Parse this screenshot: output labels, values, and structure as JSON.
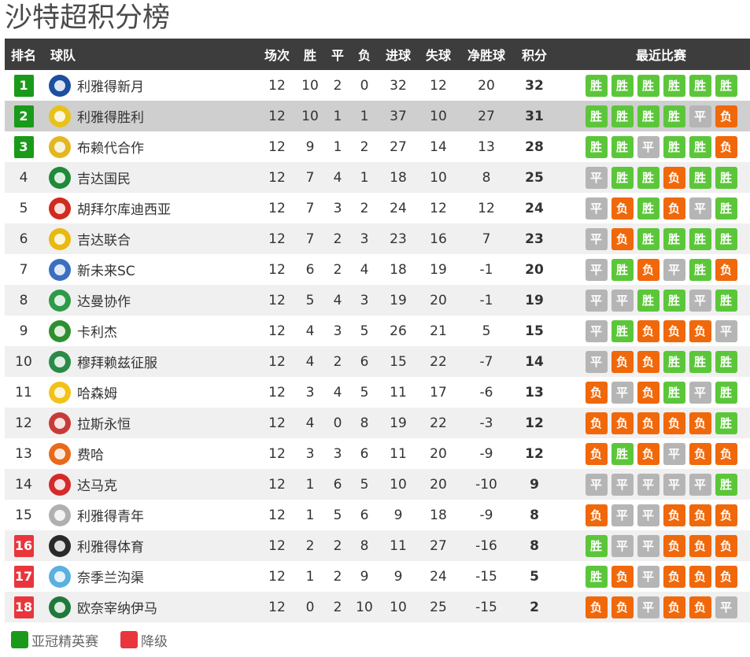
{
  "title": "沙特超积分榜",
  "headers": {
    "rank": "排名",
    "team": "球队",
    "played": "场次",
    "won": "胜",
    "drawn": "平",
    "lost": "负",
    "gf": "进球",
    "ga": "失球",
    "gd": "净胜球",
    "pts": "积分",
    "form": "最近比赛"
  },
  "colors": {
    "qualify": "#1a9a1a",
    "relegate": "#e8363c",
    "win": "#5cc63a",
    "draw": "#b5b5b5",
    "loss": "#f0680a",
    "header_bg": "#3d3d3d"
  },
  "form_labels": {
    "W": "胜",
    "D": "平",
    "L": "负"
  },
  "rows": [
    {
      "rank": "1",
      "zone": "qualify",
      "team": "利雅得新月",
      "logo": "al-hilal-crest",
      "logo_color": "#1d4fa0",
      "played": "12",
      "won": "10",
      "drawn": "2",
      "lost": "0",
      "gf": "32",
      "ga": "12",
      "gd": "20",
      "pts": "32",
      "form": [
        "W",
        "W",
        "W",
        "W",
        "W",
        "W"
      ]
    },
    {
      "rank": "2",
      "zone": "qualify",
      "team": "利雅得胜利",
      "logo": "al-nassr-crest",
      "logo_color": "#e8c21a",
      "played": "12",
      "won": "10",
      "drawn": "1",
      "lost": "1",
      "gf": "37",
      "ga": "10",
      "gd": "27",
      "pts": "31",
      "form": [
        "W",
        "W",
        "W",
        "W",
        "D",
        "L"
      ],
      "highlight": true
    },
    {
      "rank": "3",
      "zone": "qualify",
      "team": "布赖代合作",
      "logo": "al-taawoun-crest",
      "logo_color": "#e4b720",
      "played": "12",
      "won": "9",
      "drawn": "1",
      "lost": "2",
      "gf": "27",
      "ga": "14",
      "gd": "13",
      "pts": "28",
      "form": [
        "W",
        "W",
        "D",
        "W",
        "W",
        "L"
      ]
    },
    {
      "rank": "4",
      "zone": "",
      "team": "吉达国民",
      "logo": "al-ahli-crest",
      "logo_color": "#1f8a3a",
      "played": "12",
      "won": "7",
      "drawn": "4",
      "lost": "1",
      "gf": "18",
      "ga": "10",
      "gd": "8",
      "pts": "25",
      "form": [
        "D",
        "W",
        "W",
        "L",
        "W",
        "W"
      ]
    },
    {
      "rank": "5",
      "zone": "",
      "team": "胡拜尔库迪西亚",
      "logo": "al-qadsiah-crest",
      "logo_color": "#d12a1e",
      "played": "12",
      "won": "7",
      "drawn": "3",
      "lost": "2",
      "gf": "24",
      "ga": "12",
      "gd": "12",
      "pts": "24",
      "form": [
        "D",
        "L",
        "W",
        "L",
        "D",
        "W"
      ]
    },
    {
      "rank": "6",
      "zone": "",
      "team": "吉达联合",
      "logo": "al-ittihad-crest",
      "logo_color": "#e8b90f",
      "played": "12",
      "won": "7",
      "drawn": "2",
      "lost": "3",
      "gf": "23",
      "ga": "16",
      "gd": "7",
      "pts": "23",
      "form": [
        "D",
        "L",
        "W",
        "W",
        "W",
        "W"
      ]
    },
    {
      "rank": "7",
      "zone": "",
      "team": "新未来SC",
      "logo": "neom-crest",
      "logo_color": "#3a6fc0",
      "played": "12",
      "won": "6",
      "drawn": "2",
      "lost": "4",
      "gf": "18",
      "ga": "19",
      "gd": "-1",
      "pts": "20",
      "form": [
        "D",
        "W",
        "L",
        "D",
        "W",
        "L"
      ]
    },
    {
      "rank": "8",
      "zone": "",
      "team": "达曼协作",
      "logo": "al-ettifaq-crest",
      "logo_color": "#2e9a4a",
      "played": "12",
      "won": "5",
      "drawn": "4",
      "lost": "3",
      "gf": "19",
      "ga": "20",
      "gd": "-1",
      "pts": "19",
      "form": [
        "D",
        "D",
        "W",
        "W",
        "D",
        "W"
      ]
    },
    {
      "rank": "9",
      "zone": "",
      "team": "卡利杰",
      "logo": "al-khaleej-crest",
      "logo_color": "#2f8f2f",
      "played": "12",
      "won": "4",
      "drawn": "3",
      "lost": "5",
      "gf": "26",
      "ga": "21",
      "gd": "5",
      "pts": "15",
      "form": [
        "D",
        "W",
        "L",
        "L",
        "L",
        "D"
      ]
    },
    {
      "rank": "10",
      "zone": "",
      "team": "穆拜赖兹征服",
      "logo": "al-fateh-crest",
      "logo_color": "#2a8a48",
      "played": "12",
      "won": "4",
      "drawn": "2",
      "lost": "6",
      "gf": "15",
      "ga": "22",
      "gd": "-7",
      "pts": "14",
      "form": [
        "D",
        "L",
        "L",
        "W",
        "W",
        "W"
      ]
    },
    {
      "rank": "11",
      "zone": "",
      "team": "哈森姆",
      "logo": "al-hazem-crest",
      "logo_color": "#f2c218",
      "played": "12",
      "won": "3",
      "drawn": "4",
      "lost": "5",
      "gf": "11",
      "ga": "17",
      "gd": "-6",
      "pts": "13",
      "form": [
        "L",
        "D",
        "L",
        "W",
        "D",
        "W"
      ]
    },
    {
      "rank": "12",
      "zone": "",
      "team": "拉斯永恒",
      "logo": "al-khulood-crest",
      "logo_color": "#c83a3a",
      "played": "12",
      "won": "4",
      "drawn": "0",
      "lost": "8",
      "gf": "19",
      "ga": "22",
      "gd": "-3",
      "pts": "12",
      "form": [
        "L",
        "L",
        "L",
        "L",
        "L",
        "W"
      ]
    },
    {
      "rank": "13",
      "zone": "",
      "team": "费哈",
      "logo": "al-feiha-crest",
      "logo_color": "#e86a1a",
      "played": "12",
      "won": "3",
      "drawn": "3",
      "lost": "6",
      "gf": "11",
      "ga": "20",
      "gd": "-9",
      "pts": "12",
      "form": [
        "L",
        "W",
        "L",
        "D",
        "L",
        "L"
      ]
    },
    {
      "rank": "14",
      "zone": "",
      "team": "达马克",
      "logo": "damac-crest",
      "logo_color": "#d62a2a",
      "played": "12",
      "won": "1",
      "drawn": "6",
      "lost": "5",
      "gf": "10",
      "ga": "20",
      "gd": "-10",
      "pts": "9",
      "form": [
        "D",
        "D",
        "D",
        "D",
        "D",
        "W"
      ]
    },
    {
      "rank": "15",
      "zone": "",
      "team": "利雅得青年",
      "logo": "al-shabab-crest",
      "logo_color": "#b0b0b0",
      "played": "12",
      "won": "1",
      "drawn": "5",
      "lost": "6",
      "gf": "9",
      "ga": "18",
      "gd": "-9",
      "pts": "8",
      "form": [
        "L",
        "D",
        "D",
        "L",
        "L",
        "L"
      ]
    },
    {
      "rank": "16",
      "zone": "relegate",
      "team": "利雅得体育",
      "logo": "al-riyadh-crest",
      "logo_color": "#2a2a2a",
      "played": "12",
      "won": "2",
      "drawn": "2",
      "lost": "8",
      "gf": "11",
      "ga": "27",
      "gd": "-16",
      "pts": "8",
      "form": [
        "W",
        "D",
        "D",
        "L",
        "L",
        "L"
      ]
    },
    {
      "rank": "17",
      "zone": "relegate",
      "team": "奈季兰沟渠",
      "logo": "al-okhdood-crest",
      "logo_color": "#5ab0e0",
      "played": "12",
      "won": "1",
      "drawn": "2",
      "lost": "9",
      "gf": "9",
      "ga": "24",
      "gd": "-15",
      "pts": "5",
      "form": [
        "W",
        "L",
        "D",
        "L",
        "L",
        "L"
      ]
    },
    {
      "rank": "18",
      "zone": "relegate",
      "team": "欧奈宰纳伊马",
      "logo": "al-najma-crest",
      "logo_color": "#1f7a3a",
      "played": "12",
      "won": "0",
      "drawn": "2",
      "lost": "10",
      "gf": "10",
      "ga": "25",
      "gd": "-15",
      "pts": "2",
      "form": [
        "L",
        "L",
        "D",
        "L",
        "L",
        "D"
      ]
    }
  ],
  "legend": [
    {
      "label": "亚冠精英赛",
      "zone": "qualify"
    },
    {
      "label": "降级",
      "zone": "relegate"
    }
  ]
}
